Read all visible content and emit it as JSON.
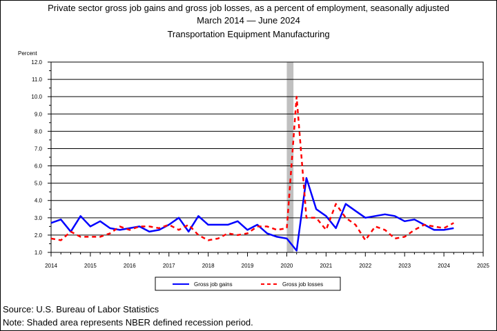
{
  "title_line1": "Private sector gross job gains and gross job losses, as a percent of employment, seasonally adjusted",
  "title_line2_start": "March 2014",
  "title_line2_end": "June 2024",
  "title_line3": "Transportation Equipment Manufacturing",
  "source": "Source: U.S. Bureau of Labor Statistics",
  "note": "Note: Shaded area represents NBER defined recession period.",
  "colors": {
    "gains": "#0000ff",
    "losses": "#ff0000",
    "recession": "#c0c0c0"
  },
  "chart_data": {
    "type": "line",
    "ylabel": "Percent",
    "ylim": [
      1.0,
      12.0
    ],
    "yticks": [
      "1.0",
      "2.0",
      "3.0",
      "4.0",
      "5.0",
      "6.0",
      "7.0",
      "8.0",
      "9.0",
      "10.0",
      "11.0",
      "12.0"
    ],
    "xlim": [
      2014.0,
      2025.0
    ],
    "xticks": [
      "2014",
      "2015",
      "2016",
      "2017",
      "2018",
      "2019",
      "2020",
      "2021",
      "2022",
      "2023",
      "2024",
      "2025"
    ],
    "grid": true,
    "legend_position": "bottom",
    "recession": [
      2020.0,
      2020.17
    ],
    "x": [
      2014.0,
      2014.25,
      2014.5,
      2014.75,
      2015.0,
      2015.25,
      2015.5,
      2015.75,
      2016.0,
      2016.25,
      2016.5,
      2016.75,
      2017.0,
      2017.25,
      2017.5,
      2017.75,
      2018.0,
      2018.25,
      2018.5,
      2018.75,
      2019.0,
      2019.25,
      2019.5,
      2019.75,
      2020.0,
      2020.25,
      2020.5,
      2020.75,
      2021.0,
      2021.25,
      2021.5,
      2021.75,
      2022.0,
      2022.25,
      2022.5,
      2022.75,
      2023.0,
      2023.25,
      2023.5,
      2023.75,
      2024.0,
      2024.25
    ],
    "series": [
      {
        "name": "Gross job gains",
        "values": [
          2.7,
          2.9,
          2.2,
          3.1,
          2.5,
          2.8,
          2.4,
          2.3,
          2.4,
          2.5,
          2.2,
          2.3,
          2.6,
          3.0,
          2.2,
          3.1,
          2.6,
          2.6,
          2.6,
          2.8,
          2.3,
          2.6,
          2.1,
          1.9,
          1.8,
          1.1,
          5.3,
          3.5,
          3.1,
          2.4,
          3.8,
          3.4,
          3.0,
          3.1,
          3.2,
          3.1,
          2.8,
          2.9,
          2.6,
          2.3,
          2.3,
          2.4
        ]
      },
      {
        "name": "Gross job losses",
        "values": [
          1.8,
          1.7,
          2.2,
          1.9,
          1.9,
          1.9,
          2.1,
          2.5,
          2.3,
          2.5,
          2.5,
          2.4,
          2.6,
          2.3,
          2.6,
          2.0,
          1.7,
          1.8,
          2.1,
          2.0,
          2.1,
          2.5,
          2.5,
          2.3,
          2.4,
          10.0,
          3.0,
          3.0,
          2.3,
          3.8,
          3.0,
          2.6,
          1.7,
          2.5,
          2.3,
          1.8,
          1.9,
          2.3,
          2.6,
          2.5,
          2.4,
          2.7
        ]
      }
    ]
  }
}
